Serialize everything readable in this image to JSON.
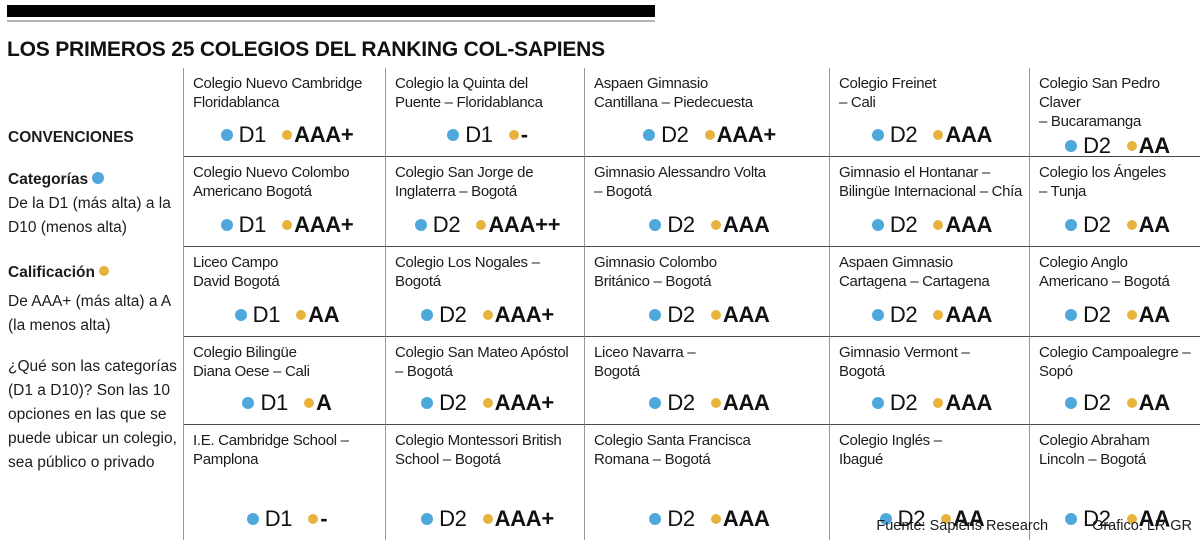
{
  "title": "LOS PRIMEROS 25 COLEGIOS DEL RANKING COL-SAPIENS",
  "colors": {
    "category_dot": "#4FA8DC",
    "rating_dot": "#E8B33C"
  },
  "legend": {
    "heading": "CONVENCIONES",
    "categories_label": "Categorías",
    "categories_desc": "De la D1 (más alta) a la D10 (menos alta)",
    "rating_label": "Calificación",
    "rating_desc": "De AAA+ (más alta) a A (la menos alta)",
    "note": "¿Qué son las categorías (D1 a D10)? Son las 10 opciones en las que se puede ubicar un colegio, sea público o privado"
  },
  "schools": [
    {
      "name": "Colegio Nuevo Cambridge\nFloridablanca",
      "category": "D1",
      "rating": "AAA+"
    },
    {
      "name": "Colegio la Quinta del\nPuente – Floridablanca",
      "category": "D1",
      "rating": "-"
    },
    {
      "name": "Aspaen Gimnasio\nCantillana – Piedecuesta",
      "category": "D2",
      "rating": "AAA+"
    },
    {
      "name": "Colegio Freinet\n– Cali",
      "category": "D2",
      "rating": "AAA"
    },
    {
      "name": "Colegio San Pedro Claver\n– Bucaramanga",
      "category": "D2",
      "rating": "AA"
    },
    {
      "name": "Colegio Nuevo Colombo\nAmericano Bogotá",
      "category": "D1",
      "rating": "AAA+"
    },
    {
      "name": "Colegio San Jorge de\nInglaterra – Bogotá",
      "category": "D2",
      "rating": "AAA++"
    },
    {
      "name": "Gimnasio Alessandro Volta\n– Bogotá",
      "category": "D2",
      "rating": "AAA"
    },
    {
      "name": "Gimnasio el Hontanar –\nBilingüe Internacional – Chía",
      "category": "D2",
      "rating": "AAA"
    },
    {
      "name": "Colegio los Ángeles\n– Tunja",
      "category": "D2",
      "rating": "AA"
    },
    {
      "name": "Liceo Campo\nDavid Bogotá",
      "category": "D1",
      "rating": "AA"
    },
    {
      "name": "Colegio Los Nogales –\nBogotá",
      "category": "D2",
      "rating": "AAA+"
    },
    {
      "name": "Gimnasio Colombo\nBritánico – Bogotá",
      "category": "D2",
      "rating": "AAA"
    },
    {
      "name": "Aspaen Gimnasio\nCartagena – Cartagena",
      "category": "D2",
      "rating": "AAA"
    },
    {
      "name": "Colegio Anglo\nAmericano – Bogotá",
      "category": "D2",
      "rating": "AA"
    },
    {
      "name": "Colegio Bilingüe\nDiana Oese – Cali",
      "category": "D1",
      "rating": "A"
    },
    {
      "name": "Colegio San Mateo Apóstol\n– Bogotá",
      "category": "D2",
      "rating": "AAA+"
    },
    {
      "name": "Liceo Navarra –\nBogotá",
      "category": "D2",
      "rating": "AAA"
    },
    {
      "name": "Gimnasio Vermont –\nBogotá",
      "category": "D2",
      "rating": "AAA"
    },
    {
      "name": "Colegio Campoalegre –\nSopó",
      "category": "D2",
      "rating": "AA"
    },
    {
      "name": "I.E. Cambridge School –\nPamplona",
      "category": "D1",
      "rating": "-"
    },
    {
      "name": "Colegio Montessori British\nSchool – Bogotá",
      "category": "D2",
      "rating": "AAA+"
    },
    {
      "name": "Colegio Santa Francisca\nRomana – Bogotá",
      "category": "D2",
      "rating": "AAA"
    },
    {
      "name": "Colegio Inglés –\nIbagué",
      "category": "D2",
      "rating": "AA"
    },
    {
      "name": "Colegio Abraham\nLincoln – Bogotá",
      "category": "D2",
      "rating": "AA"
    }
  ],
  "chart_data": {
    "type": "table",
    "title": "LOS PRIMEROS 25 COLEGIOS DEL RANKING COL-SAPIENS",
    "columns": [
      "Colegio",
      "Categoría",
      "Calificación"
    ],
    "rows": [
      [
        "Colegio Nuevo Cambridge Floridablanca",
        "D1",
        "AAA+"
      ],
      [
        "Colegio la Quinta del Puente – Floridablanca",
        "D1",
        "-"
      ],
      [
        "Aspaen Gimnasio Cantillana – Piedecuesta",
        "D2",
        "AAA+"
      ],
      [
        "Colegio Freinet – Cali",
        "D2",
        "AAA"
      ],
      [
        "Colegio San Pedro Claver – Bucaramanga",
        "D2",
        "AA"
      ],
      [
        "Colegio Nuevo Colombo Americano Bogotá",
        "D1",
        "AAA+"
      ],
      [
        "Colegio San Jorge de Inglaterra – Bogotá",
        "D2",
        "AAA++"
      ],
      [
        "Gimnasio Alessandro Volta – Bogotá",
        "D2",
        "AAA"
      ],
      [
        "Gimnasio el Hontanar – Bilingüe Internacional – Chía",
        "D2",
        "AAA"
      ],
      [
        "Colegio los Ángeles – Tunja",
        "D2",
        "AA"
      ],
      [
        "Liceo Campo David Bogotá",
        "D1",
        "AA"
      ],
      [
        "Colegio Los Nogales – Bogotá",
        "D2",
        "AAA+"
      ],
      [
        "Gimnasio Colombo Británico – Bogotá",
        "D2",
        "AAA"
      ],
      [
        "Aspaen Gimnasio Cartagena – Cartagena",
        "D2",
        "AAA"
      ],
      [
        "Colegio Anglo Americano – Bogotá",
        "D2",
        "AA"
      ],
      [
        "Colegio Bilingüe Diana Oese – Cali",
        "D1",
        "A"
      ],
      [
        "Colegio San Mateo Apóstol – Bogotá",
        "D2",
        "AAA+"
      ],
      [
        "Liceo Navarra – Bogotá",
        "D2",
        "AAA"
      ],
      [
        "Gimnasio Vermont – Bogotá",
        "D2",
        "AAA"
      ],
      [
        "Colegio Campoalegre – Sopó",
        "D2",
        "AA"
      ],
      [
        "I.E. Cambridge School – Pamplona",
        "D1",
        "-"
      ],
      [
        "Colegio Montessori British School – Bogotá",
        "D2",
        "AAA+"
      ],
      [
        "Colegio Santa Francisca Romana – Bogotá",
        "D2",
        "AAA"
      ],
      [
        "Colegio Inglés – Ibagué",
        "D2",
        "AA"
      ],
      [
        "Colegio Abraham Lincoln – Bogotá",
        "D2",
        "AA"
      ]
    ]
  },
  "footer": {
    "source": "Fuente: Sapiens Research",
    "credit": "Grafico: LR-GR"
  }
}
